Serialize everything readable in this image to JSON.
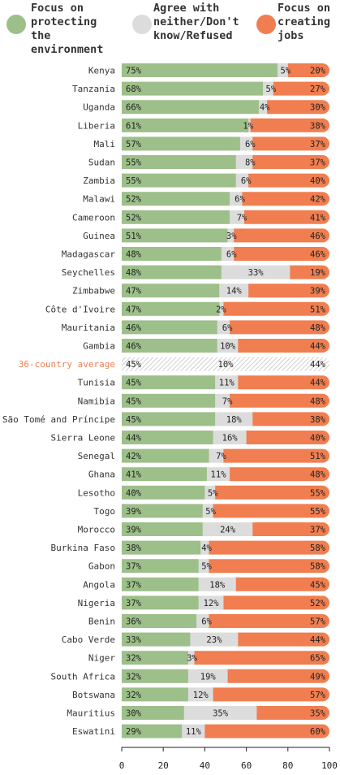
{
  "legend": [
    {
      "label": "Focus on\nprotecting the\nenvironment",
      "color": "#9dbf8a"
    },
    {
      "label": "Agree with\nneither/Don't\nknow/Refused",
      "color": "#dcdcdc"
    },
    {
      "label": "Focus on\ncreating\njobs",
      "color": "#f07e50"
    }
  ],
  "chart_data": {
    "type": "bar",
    "orientation": "horizontal",
    "stacked": true,
    "xlim": [
      0,
      100
    ],
    "xticks": [
      "0",
      "20",
      "40",
      "60",
      "80",
      "100"
    ],
    "highlight_category": "36-country average",
    "highlight_color": "#f07e50",
    "categories": [
      "Kenya",
      "Tanzania",
      "Uganda",
      "Liberia",
      "Mali",
      "Sudan",
      "Zambia",
      "Malawi",
      "Cameroon",
      "Guinea",
      "Madagascar",
      "Seychelles",
      "Zimbabwe",
      "Côte d'Ivoire",
      "Mauritania",
      "Gambia",
      "36-country average",
      "Tunisia",
      "Namibia",
      "São Tomé and Príncipe",
      "Sierra Leone",
      "Senegal",
      "Ghana",
      "Lesotho",
      "Togo",
      "Morocco",
      "Burkina Faso",
      "Gabon",
      "Angola",
      "Nigeria",
      "Benin",
      "Cabo Verde",
      "Niger",
      "South Africa",
      "Botswana",
      "Mauritius",
      "Eswatini"
    ],
    "series": [
      {
        "name": "Focus on protecting the environment",
        "color": "#9dbf8a",
        "values": [
          75,
          68,
          66,
          61,
          57,
          55,
          55,
          52,
          52,
          51,
          48,
          48,
          47,
          47,
          46,
          46,
          45,
          45,
          45,
          45,
          44,
          42,
          41,
          40,
          39,
          39,
          38,
          37,
          37,
          37,
          36,
          33,
          32,
          32,
          32,
          30,
          29
        ]
      },
      {
        "name": "Agree with neither/Don't know/Refused",
        "color": "#dcdcdc",
        "values": [
          5,
          5,
          4,
          1,
          6,
          8,
          6,
          6,
          7,
          3,
          6,
          33,
          14,
          2,
          6,
          10,
          10,
          11,
          7,
          18,
          16,
          7,
          11,
          5,
          5,
          24,
          4,
          5,
          18,
          12,
          6,
          23,
          3,
          19,
          12,
          35,
          11
        ]
      },
      {
        "name": "Focus on creating jobs",
        "color": "#f07e50",
        "values": [
          20,
          27,
          30,
          38,
          37,
          37,
          40,
          42,
          41,
          46,
          46,
          19,
          39,
          51,
          48,
          44,
          44,
          44,
          48,
          38,
          40,
          51,
          48,
          55,
          55,
          37,
          58,
          58,
          45,
          52,
          57,
          44,
          65,
          49,
          57,
          35,
          60
        ]
      }
    ]
  }
}
